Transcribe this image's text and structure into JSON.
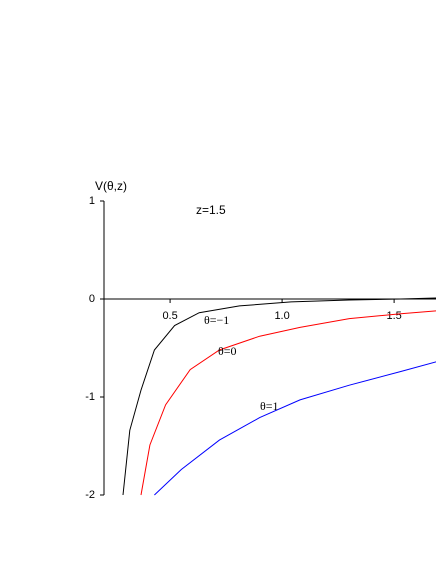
{
  "chart_data": {
    "type": "line",
    "y_label": "V(θ,z)",
    "annotation": "z=1.5",
    "xlim": [
      0.205,
      1.687
    ],
    "ylim": [
      -2,
      1
    ],
    "xticks": [
      0.5,
      {
        "value": 1,
        "label": "1.0"
      },
      1.5
    ],
    "yticks": [
      1,
      0,
      -1,
      -2
    ],
    "series": [
      {
        "name": "θ=−1",
        "color": "#000000",
        "x": [
          0.29,
          0.32,
          0.37,
          0.43,
          0.52,
          0.63,
          0.81,
          1.04,
          1.3,
          1.53,
          1.69
        ],
        "values": [
          -2,
          -1.34,
          -0.93,
          -0.52,
          -0.27,
          -0.14,
          -0.07,
          -0.03,
          -0.01,
          0,
          0.01
        ]
      },
      {
        "name": "θ=0",
        "color": "#ff0000",
        "x": [
          0.37,
          0.41,
          0.48,
          0.59,
          0.72,
          0.9,
          1.08,
          1.3,
          1.53,
          1.69
        ],
        "values": [
          -2,
          -1.49,
          -1.08,
          -0.72,
          -0.52,
          -0.38,
          -0.29,
          -0.2,
          -0.15,
          -0.12
        ]
      },
      {
        "name": "θ=1",
        "color": "#0000ff",
        "x": [
          0.43,
          0.55,
          0.72,
          0.9,
          1.08,
          1.3,
          1.53,
          1.69
        ],
        "values": [
          -2,
          -1.74,
          -1.44,
          -1.21,
          -1.03,
          -0.88,
          -0.74,
          -0.64
        ]
      }
    ]
  }
}
